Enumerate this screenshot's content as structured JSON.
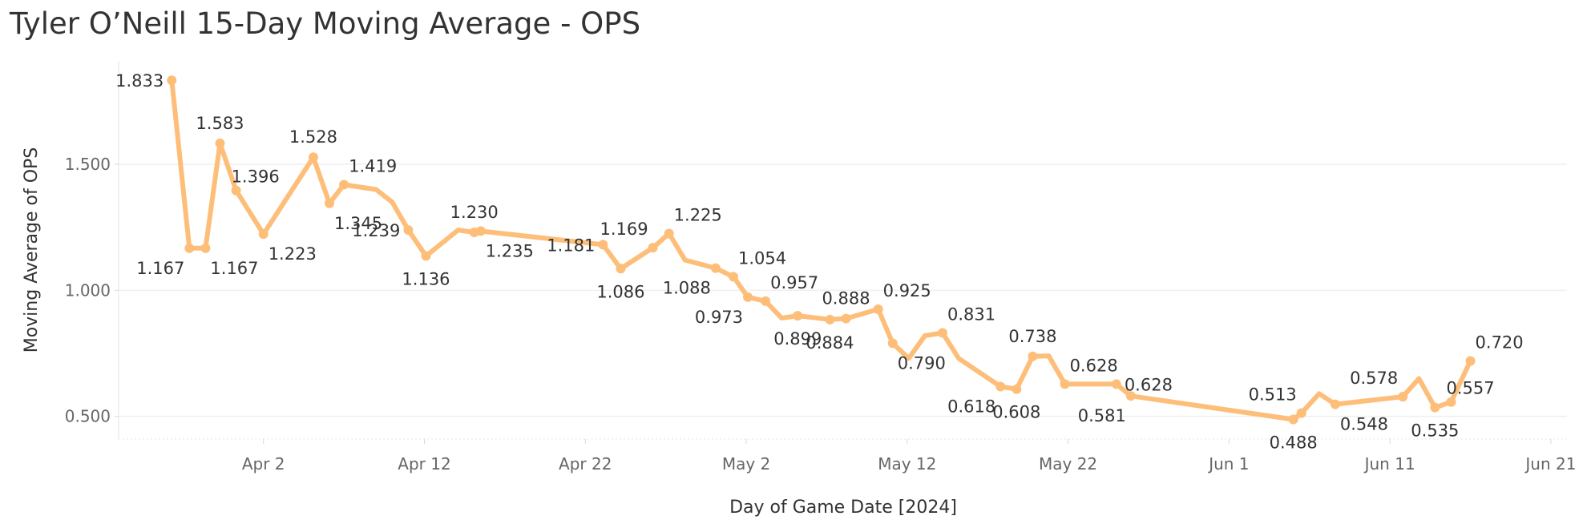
{
  "title": "Tyler O’Neill 15-Day Moving Average - OPS",
  "chart_data": {
    "type": "line",
    "title": "Tyler O’Neill 15-Day Moving Average - OPS",
    "xlabel": "Day of Game Date [2024]",
    "ylabel": "Moving Average of OPS",
    "x_ticks": [
      {
        "label": "Apr 2",
        "day": 2
      },
      {
        "label": "Apr 12",
        "day": 12
      },
      {
        "label": "Apr 22",
        "day": 22
      },
      {
        "label": "May 2",
        "day": 32
      },
      {
        "label": "May 12",
        "day": 42
      },
      {
        "label": "May 22",
        "day": 52
      },
      {
        "label": "Jun 1",
        "day": 62
      },
      {
        "label": "Jun 11",
        "day": 72
      },
      {
        "label": "Jun 21",
        "day": 82
      }
    ],
    "x_unit": "days since Mar 31, 2024",
    "xlim": [
      -7,
      83
    ],
    "y_ticks": [
      {
        "label": "0.500",
        "value": 0.5
      },
      {
        "label": "1.000",
        "value": 1.0
      },
      {
        "label": "1.500",
        "value": 1.5
      }
    ],
    "ylim": [
      0.41,
      1.91
    ],
    "color": "#FDBE7A",
    "grid": true,
    "series": [
      {
        "name": "Moving Average of OPS",
        "points": [
          {
            "day": -3.7,
            "value": 1.833,
            "label": "1.833",
            "pos": "left"
          },
          {
            "day": -2.6,
            "value": 1.167,
            "label": "1.167",
            "pos": "below-left"
          },
          {
            "day": -1.6,
            "value": 1.167,
            "label": "1.167",
            "pos": "below-right"
          },
          {
            "day": -0.7,
            "value": 1.583,
            "label": "1.583",
            "pos": "above"
          },
          {
            "day": 0.3,
            "value": 1.396,
            "label": "1.396",
            "pos": "right-above"
          },
          {
            "day": 2.0,
            "value": 1.223,
            "label": "1.223",
            "pos": "below-right"
          },
          {
            "day": 5.1,
            "value": 1.528,
            "label": "1.528",
            "pos": "above"
          },
          {
            "day": 6.1,
            "value": 1.345,
            "label": "1.345",
            "pos": "below-right"
          },
          {
            "day": 7.0,
            "value": 1.419,
            "label": "1.419",
            "pos": "above-right"
          },
          {
            "day": 9.0,
            "value": 1.4,
            "label": ""
          },
          {
            "day": 10.0,
            "value": 1.35,
            "label": ""
          },
          {
            "day": 11.0,
            "value": 1.239,
            "label": "1.239",
            "pos": "left"
          },
          {
            "day": 12.1,
            "value": 1.136,
            "label": "1.136",
            "pos": "below"
          },
          {
            "day": 14.1,
            "value": 1.239,
            "label": ""
          },
          {
            "day": 15.1,
            "value": 1.23,
            "label": "1.230",
            "pos": "above"
          },
          {
            "day": 15.5,
            "value": 1.235,
            "label": "1.235",
            "pos": "below-right"
          },
          {
            "day": 23.1,
            "value": 1.181,
            "label": "1.181",
            "pos": "left"
          },
          {
            "day": 24.2,
            "value": 1.086,
            "label": "1.086",
            "pos": "below"
          },
          {
            "day": 26.2,
            "value": 1.169,
            "label": "1.169",
            "pos": "above-left"
          },
          {
            "day": 27.2,
            "value": 1.225,
            "label": "1.225",
            "pos": "above-right"
          },
          {
            "day": 28.2,
            "value": 1.12,
            "label": ""
          },
          {
            "day": 30.1,
            "value": 1.088,
            "label": "1.088",
            "pos": "below-left"
          },
          {
            "day": 31.2,
            "value": 1.054,
            "label": "1.054",
            "pos": "above-right"
          },
          {
            "day": 32.1,
            "value": 0.973,
            "label": "0.973",
            "pos": "below-left"
          },
          {
            "day": 33.2,
            "value": 0.957,
            "label": "0.957",
            "pos": "above-right"
          },
          {
            "day": 34.2,
            "value": 0.89,
            "label": ""
          },
          {
            "day": 35.2,
            "value": 0.899,
            "label": "0.899",
            "pos": "below"
          },
          {
            "day": 37.2,
            "value": 0.884,
            "label": "0.884",
            "pos": "below"
          },
          {
            "day": 38.2,
            "value": 0.888,
            "label": "0.888",
            "pos": "above"
          },
          {
            "day": 40.2,
            "value": 0.925,
            "label": "0.925",
            "pos": "above-right"
          },
          {
            "day": 41.1,
            "value": 0.79,
            "label": "0.790",
            "pos": "below-right"
          },
          {
            "day": 42.1,
            "value": 0.73,
            "label": ""
          },
          {
            "day": 43.1,
            "value": 0.82,
            "label": ""
          },
          {
            "day": 44.2,
            "value": 0.831,
            "label": "0.831",
            "pos": "above-right"
          },
          {
            "day": 45.2,
            "value": 0.73,
            "label": ""
          },
          {
            "day": 47.8,
            "value": 0.618,
            "label": "0.618",
            "pos": "below-left"
          },
          {
            "day": 48.8,
            "value": 0.608,
            "label": "0.608",
            "pos": "below"
          },
          {
            "day": 49.8,
            "value": 0.738,
            "label": "0.738",
            "pos": "above"
          },
          {
            "day": 50.8,
            "value": 0.74,
            "label": ""
          },
          {
            "day": 51.8,
            "value": 0.628,
            "label": "0.628",
            "pos": "above-right"
          },
          {
            "day": 55.0,
            "value": 0.628,
            "label": "0.628",
            "pos": "right"
          },
          {
            "day": 55.9,
            "value": 0.581,
            "label": "0.581",
            "pos": "below-left"
          },
          {
            "day": 66.0,
            "value": 0.488,
            "label": "0.488",
            "pos": "below"
          },
          {
            "day": 66.5,
            "value": 0.513,
            "label": "0.513",
            "pos": "above-left"
          },
          {
            "day": 67.6,
            "value": 0.59,
            "label": ""
          },
          {
            "day": 68.6,
            "value": 0.548,
            "label": "0.548",
            "pos": "below-right"
          },
          {
            "day": 72.8,
            "value": 0.578,
            "label": "0.578",
            "pos": "above-left"
          },
          {
            "day": 73.8,
            "value": 0.65,
            "label": ""
          },
          {
            "day": 74.8,
            "value": 0.535,
            "label": "0.535",
            "pos": "below"
          },
          {
            "day": 75.8,
            "value": 0.557,
            "label": "0.557",
            "pos": "right-above"
          },
          {
            "day": 77.0,
            "value": 0.72,
            "label": "0.720",
            "pos": "above-right"
          }
        ]
      }
    ]
  }
}
